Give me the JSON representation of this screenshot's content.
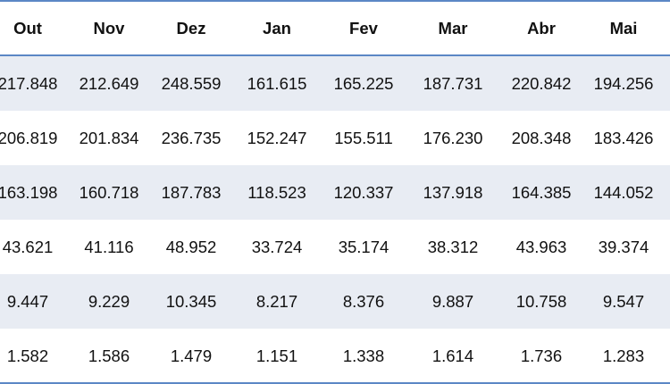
{
  "table": {
    "headers": [
      "Out",
      "Nov",
      "Dez",
      "Jan",
      "Fev",
      "Mar",
      "Abr",
      "Mai"
    ],
    "rows": [
      [
        "217.848",
        "212.649",
        "248.559",
        "161.615",
        "165.225",
        "187.731",
        "220.842",
        "194.256"
      ],
      [
        "206.819",
        "201.834",
        "236.735",
        "152.247",
        "155.511",
        "176.230",
        "208.348",
        "183.426"
      ],
      [
        "163.198",
        "160.718",
        "187.783",
        "118.523",
        "120.337",
        "137.918",
        "164.385",
        "144.052"
      ],
      [
        "43.621",
        "41.116",
        "48.952",
        "33.724",
        "35.174",
        "38.312",
        "43.963",
        "39.374"
      ],
      [
        "9.447",
        "9.229",
        "10.345",
        "8.217",
        "8.376",
        "9.887",
        "10.758",
        "9.547"
      ],
      [
        "1.582",
        "1.586",
        "1.479",
        "1.151",
        "1.338",
        "1.614",
        "1.736",
        "1.283"
      ]
    ]
  },
  "colors": {
    "border": "#5b87c5",
    "band": "#e8ecf3"
  }
}
